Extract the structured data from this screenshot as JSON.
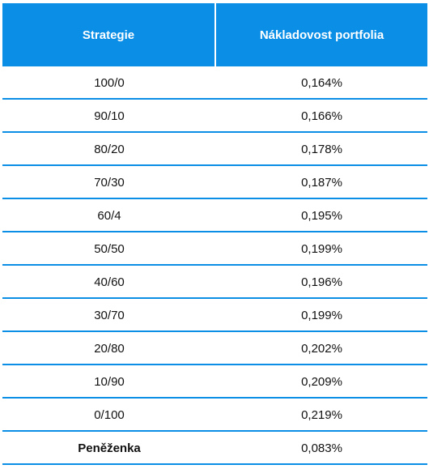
{
  "table": {
    "headers": [
      "Strategie",
      "Nákladovost portfolia"
    ],
    "rows": [
      {
        "strategy": "100/0",
        "cost": "0,164%"
      },
      {
        "strategy": "90/10",
        "cost": "0,166%"
      },
      {
        "strategy": "80/20",
        "cost": "0,178%"
      },
      {
        "strategy": "70/30",
        "cost": "0,187%"
      },
      {
        "strategy": "60/4",
        "cost": "0,195%"
      },
      {
        "strategy": "50/50",
        "cost": "0,199%"
      },
      {
        "strategy": "40/60",
        "cost": "0,196%"
      },
      {
        "strategy": "30/70",
        "cost": "0,199%"
      },
      {
        "strategy": "20/80",
        "cost": "0,202%"
      },
      {
        "strategy": "10/90",
        "cost": "0,209%"
      },
      {
        "strategy": "0/100",
        "cost": "0,219%"
      },
      {
        "strategy": "Peněženka",
        "cost": "0,083%"
      }
    ],
    "bold_rows": [
      11
    ]
  },
  "colors": {
    "header_bg": "#0a8ee6",
    "header_text": "#ffffff",
    "row_border": "#0a8ee6"
  }
}
